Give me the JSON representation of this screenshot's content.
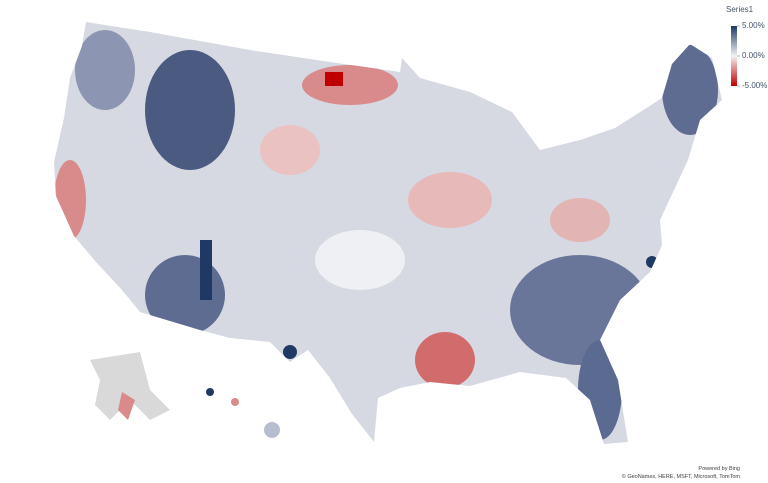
{
  "legend": {
    "title": "Series1",
    "range": [
      -5,
      5
    ],
    "colors": {
      "min": "#c00000",
      "mid": "#f2f2f2",
      "max": "#1f3864"
    },
    "ticks": [
      {
        "value": 5,
        "label": "5.00%"
      },
      {
        "value": 0,
        "label": "0.00%"
      },
      {
        "value": -5,
        "label": "-5.00%"
      }
    ]
  },
  "attribution": {
    "provider": "Powered by Bing",
    "sources": "© GeoNames, HERE, MSFT, Microsoft, TomTom"
  }
}
